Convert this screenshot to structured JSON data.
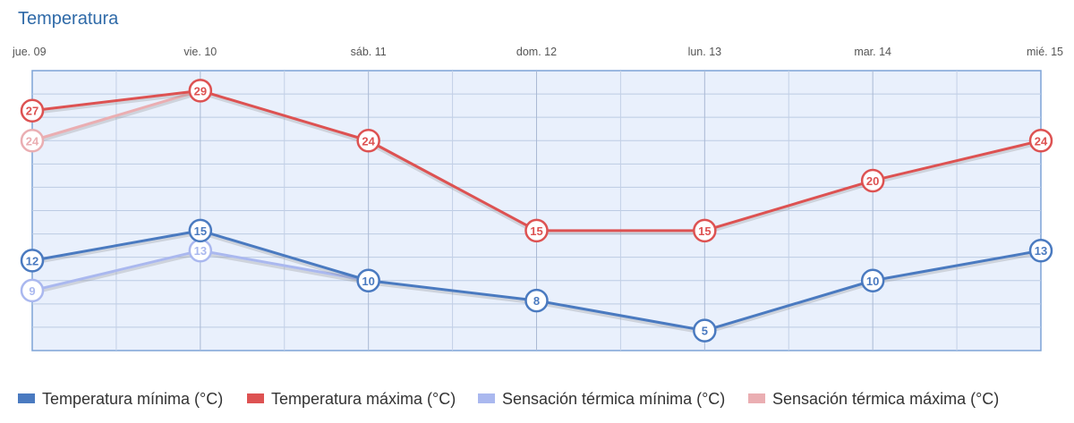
{
  "chart_data": {
    "type": "line",
    "title": "Temperatura",
    "categories": [
      "jue. 09",
      "vie. 10",
      "sáb. 11",
      "dom. 12",
      "lun. 13",
      "mar. 14",
      "mié. 15"
    ],
    "ylim": [
      3,
      31
    ],
    "grid": true,
    "legend_position": "bottom",
    "series": [
      {
        "name": "Sensación térmica mínima (°C)",
        "color": "#aab8ef",
        "values": [
          9,
          13,
          10,
          null,
          null,
          null,
          null
        ]
      },
      {
        "name": "Sensación térmica máxima (°C)",
        "color": "#eaaeb2",
        "values": [
          24,
          29,
          null,
          null,
          null,
          null,
          null
        ]
      },
      {
        "name": "Temperatura mínima (°C)",
        "color": "#4a7ac0",
        "values": [
          12,
          15,
          10,
          8,
          5,
          10,
          13
        ]
      },
      {
        "name": "Temperatura máxima (°C)",
        "color": "#dd5252",
        "values": [
          27,
          29,
          24,
          15,
          15,
          20,
          24
        ]
      }
    ],
    "legend": [
      {
        "label": "Temperatura mínima (°C)",
        "color": "#4a7ac0"
      },
      {
        "label": "Temperatura máxima (°C)",
        "color": "#dd5252"
      },
      {
        "label": "Sensación térmica mínima (°C)",
        "color": "#aab8ef"
      },
      {
        "label": "Sensación térmica máxima (°C)",
        "color": "#eaaeb2"
      }
    ]
  }
}
